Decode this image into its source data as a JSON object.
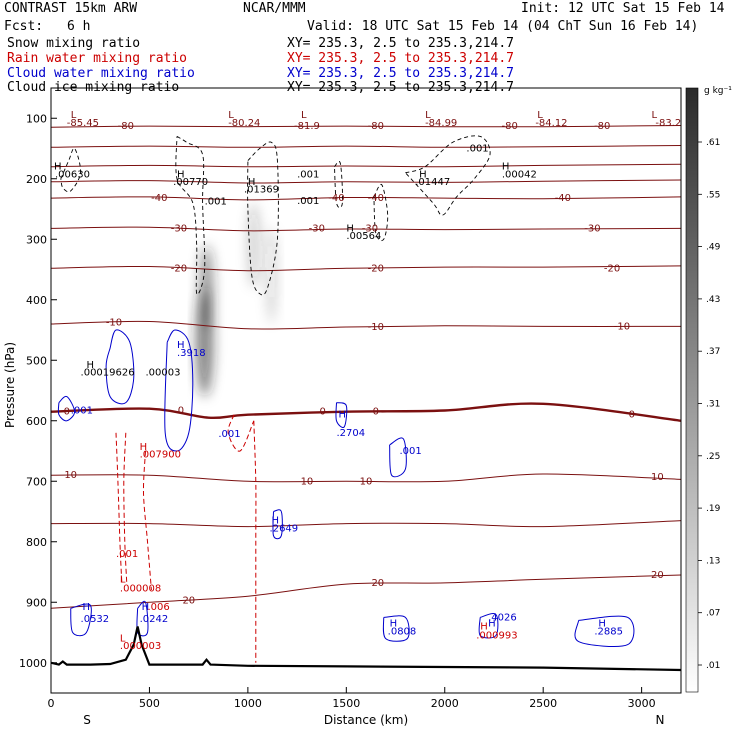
{
  "header": {
    "model": "CONTRAST 15km ARW",
    "org": "NCAR/MMM",
    "init": "Init: 12 UTC Sat 15 Feb 14",
    "fcst_label": "Fcst:",
    "fcst_value": "6 h",
    "valid": "Valid: 18 UTC Sat 15 Feb 14 (04 ChT Sun 16 Feb 14)"
  },
  "legend": [
    {
      "name": "Snow mixing ratio",
      "xy": "XY= 235.3,  2.5 to 235.3,214.7",
      "color": "#000000"
    },
    {
      "name": "Rain water mixing ratio",
      "xy": "XY= 235.3,  2.5 to 235.3,214.7",
      "color": "#cc0000"
    },
    {
      "name": "Cloud water mixing ratio",
      "xy": "XY= 235.3,  2.5 to 235.3,214.7",
      "color": "#0000cc"
    },
    {
      "name": "Cloud ice mixing ratio",
      "xy": "XY= 235.3,  2.5 to 235.3,214.7",
      "color": "#000000"
    }
  ],
  "colors": {
    "temperature": "#7b1010",
    "rain": "#cc0000",
    "cloud_water": "#0000cc",
    "snow": "#000000",
    "terrain": "#000000"
  },
  "chart_data": {
    "type": "line",
    "xlabel": "Distance (km)",
    "ylabel": "Pressure (hPa)",
    "xlim": [
      0,
      3200
    ],
    "ylim": [
      1050,
      50
    ],
    "x_ticks": [
      0,
      500,
      1000,
      1500,
      2000,
      2500,
      3000
    ],
    "y_ticks": [
      100,
      200,
      300,
      400,
      500,
      600,
      700,
      800,
      900,
      1000
    ],
    "x_end_labels": [
      "S",
      "N"
    ],
    "colorbar": {
      "unit": "g kg⁻¹",
      "ticks": [
        ".61",
        ".55",
        ".49",
        ".43",
        ".37",
        ".31",
        ".25",
        ".19",
        ".13",
        ".07",
        ".01"
      ]
    },
    "isotherms": [
      {
        "label": "-80",
        "x": [
          0,
          500,
          1000,
          1500,
          2000,
          2500,
          3200
        ],
        "p": [
          115,
          113,
          114,
          113,
          114,
          114,
          112
        ]
      },
      {
        "label": "-70",
        "x": [
          0,
          500,
          1000,
          1500,
          2000,
          2500,
          3200
        ],
        "p": [
          148,
          146,
          148,
          146,
          148,
          147,
          145
        ]
      },
      {
        "label": "-60",
        "x": [
          0,
          500,
          1000,
          1500,
          2000,
          2500,
          3200
        ],
        "p": [
          180,
          178,
          180,
          179,
          180,
          178,
          176
        ]
      },
      {
        "label": "-50",
        "x": [
          0,
          500,
          1000,
          1500,
          2000,
          2500,
          3200
        ],
        "p": [
          205,
          203,
          207,
          205,
          206,
          204,
          202
        ]
      },
      {
        "label": "-40",
        "x": [
          0,
          500,
          1000,
          1500,
          2000,
          2500,
          3200
        ],
        "p": [
          232,
          230,
          235,
          231,
          232,
          233,
          230
        ]
      },
      {
        "label": "-30",
        "x": [
          0,
          500,
          1000,
          1500,
          2000,
          2500,
          3200
        ],
        "p": [
          282,
          280,
          286,
          283,
          284,
          283,
          282
        ]
      },
      {
        "label": "-20",
        "x": [
          0,
          500,
          1000,
          1500,
          2000,
          2500,
          3200
        ],
        "p": [
          348,
          345,
          352,
          348,
          346,
          346,
          344
        ]
      },
      {
        "label": "-10",
        "x": [
          0,
          500,
          1000,
          1500,
          2000,
          2500,
          3200
        ],
        "p": [
          440,
          436,
          448,
          445,
          443,
          444,
          444
        ]
      },
      {
        "label": "0",
        "x": [
          0,
          500,
          800,
          1000,
          1500,
          2000,
          2500,
          3200
        ],
        "p": [
          585,
          580,
          595,
          590,
          585,
          583,
          572,
          600
        ]
      },
      {
        "label": "10",
        "x": [
          0,
          500,
          1000,
          1500,
          2000,
          2500,
          3200
        ],
        "p": [
          690,
          690,
          700,
          700,
          700,
          688,
          697
        ]
      },
      {
        "label": "10",
        "x": [
          0,
          500,
          1000,
          1500,
          2000,
          2500,
          3200
        ],
        "p": [
          770,
          770,
          775,
          770,
          770,
          775,
          765
        ]
      },
      {
        "label": "20",
        "x": [
          0,
          500,
          1000,
          1500,
          2000,
          2500,
          3200
        ],
        "p": [
          910,
          900,
          890,
          870,
          868,
          862,
          855
        ]
      }
    ],
    "temperature_labels": [
      {
        "text": "-80",
        "x": 380,
        "p": 113
      },
      {
        "text": "-81.9",
        "x": 1300,
        "p": 113
      },
      {
        "text": "-80",
        "x": 1650,
        "p": 113
      },
      {
        "text": "-80",
        "x": 2330,
        "p": 113
      },
      {
        "text": "-80",
        "x": 2800,
        "p": 113
      },
      {
        "text": "-40",
        "x": 550,
        "p": 232
      },
      {
        "text": "-40",
        "x": 1450,
        "p": 232
      },
      {
        "text": "-40",
        "x": 1650,
        "p": 232
      },
      {
        "text": "-40",
        "x": 2600,
        "p": 232
      },
      {
        "text": "-30",
        "x": 650,
        "p": 282
      },
      {
        "text": "-30",
        "x": 1350,
        "p": 282
      },
      {
        "text": "-30",
        "x": 1620,
        "p": 282
      },
      {
        "text": "-30",
        "x": 2750,
        "p": 282
      },
      {
        "text": "-20",
        "x": 650,
        "p": 348
      },
      {
        "text": "-20",
        "x": 1650,
        "p": 348
      },
      {
        "text": "-20",
        "x": 2850,
        "p": 348
      },
      {
        "text": "-10",
        "x": 320,
        "p": 438
      },
      {
        "text": "-10",
        "x": 1650,
        "p": 445
      },
      {
        "text": "-10",
        "x": 2900,
        "p": 444
      },
      {
        "text": "0",
        "x": 80,
        "p": 585
      },
      {
        "text": "0",
        "x": 660,
        "p": 583
      },
      {
        "text": "0",
        "x": 1380,
        "p": 585
      },
      {
        "text": "0",
        "x": 1650,
        "p": 585
      },
      {
        "text": "0",
        "x": 2950,
        "p": 590
      },
      {
        "text": "10",
        "x": 100,
        "p": 690
      },
      {
        "text": "10",
        "x": 1300,
        "p": 700
      },
      {
        "text": "10",
        "x": 1600,
        "p": 700
      },
      {
        "text": "10",
        "x": 3080,
        "p": 693
      },
      {
        "text": "20",
        "x": 700,
        "p": 897
      },
      {
        "text": "20",
        "x": 1660,
        "p": 868
      },
      {
        "text": "20",
        "x": 3080,
        "p": 855
      }
    ],
    "extrema_labels": [
      {
        "text": "L",
        "x": 100,
        "p": 95,
        "color": "#7b1010"
      },
      {
        "text": "-85.45",
        "x": 80,
        "p": 108,
        "color": "#7b1010"
      },
      {
        "text": "L",
        "x": 900,
        "p": 95,
        "color": "#7b1010"
      },
      {
        "text": "-80.24",
        "x": 900,
        "p": 108,
        "color": "#7b1010"
      },
      {
        "text": "L",
        "x": 1270,
        "p": 95,
        "color": "#7b1010"
      },
      {
        "text": "L",
        "x": 1900,
        "p": 95,
        "color": "#7b1010"
      },
      {
        "text": "-84.99",
        "x": 1900,
        "p": 108,
        "color": "#7b1010"
      },
      {
        "text": "L",
        "x": 2470,
        "p": 95,
        "color": "#7b1010"
      },
      {
        "text": "-84.12",
        "x": 2460,
        "p": 108,
        "color": "#7b1010"
      },
      {
        "text": "L",
        "x": 3050,
        "p": 95,
        "color": "#7b1010"
      },
      {
        "text": "-83.2",
        "x": 3070,
        "p": 108,
        "color": "#7b1010"
      },
      {
        "text": "H",
        "x": 15,
        "p": 180,
        "color": "#000"
      },
      {
        "text": ".00630",
        "x": 20,
        "p": 193,
        "color": "#000"
      },
      {
        "text": "H",
        "x": 640,
        "p": 193,
        "color": "#000"
      },
      {
        "text": ".00770",
        "x": 620,
        "p": 205,
        "color": "#000"
      },
      {
        "text": ".001",
        "x": 780,
        "p": 238,
        "color": "#000"
      },
      {
        "text": "H",
        "x": 1000,
        "p": 205,
        "color": "#000"
      },
      {
        "text": ".01369",
        "x": 980,
        "p": 218,
        "color": "#000"
      },
      {
        "text": ".001",
        "x": 1250,
        "p": 193,
        "color": "#000"
      },
      {
        "text": ".001",
        "x": 1250,
        "p": 237,
        "color": "#000"
      },
      {
        "text": "H",
        "x": 1500,
        "p": 282,
        "color": "#000"
      },
      {
        "text": ".00564",
        "x": 1500,
        "p": 295,
        "color": "#000"
      },
      {
        "text": "H",
        "x": 1870,
        "p": 193,
        "color": "#000"
      },
      {
        "text": ".01447",
        "x": 1850,
        "p": 205,
        "color": "#000"
      },
      {
        "text": ".001",
        "x": 2110,
        "p": 150,
        "color": "#000"
      },
      {
        "text": "H",
        "x": 2290,
        "p": 180,
        "color": "#000"
      },
      {
        "text": ".00042",
        "x": 2290,
        "p": 193,
        "color": "#000"
      },
      {
        "text": "H",
        "x": 180,
        "p": 508,
        "color": "#000"
      },
      {
        "text": ".00019626",
        "x": 150,
        "p": 520,
        "color": "#000"
      },
      {
        "text": ".00003",
        "x": 480,
        "p": 520,
        "color": "#000"
      },
      {
        "text": ".3918",
        "x": 640,
        "p": 488,
        "color": "#0000cc"
      },
      {
        "text": "H",
        "x": 640,
        "p": 475,
        "color": "#0000cc"
      },
      {
        "text": ".001",
        "x": 100,
        "p": 583,
        "color": "#0000cc"
      },
      {
        "text": ".001",
        "x": 850,
        "p": 622,
        "color": "#0000cc"
      },
      {
        "text": "H",
        "x": 1460,
        "p": 590,
        "color": "#0000cc"
      },
      {
        "text": ".2704",
        "x": 1450,
        "p": 620,
        "color": "#0000cc"
      },
      {
        "text": ".001",
        "x": 1770,
        "p": 650,
        "color": "#0000cc"
      },
      {
        "text": "H",
        "x": 1120,
        "p": 765,
        "color": "#0000cc"
      },
      {
        "text": ".2649",
        "x": 1110,
        "p": 778,
        "color": "#0000cc"
      },
      {
        "text": "H",
        "x": 160,
        "p": 908,
        "color": "#0000cc"
      },
      {
        "text": ".0532",
        "x": 150,
        "p": 928,
        "color": "#0000cc"
      },
      {
        "text": "H",
        "x": 460,
        "p": 908,
        "color": "#0000cc"
      },
      {
        "text": ".0242",
        "x": 450,
        "p": 928,
        "color": "#0000cc"
      },
      {
        "text": "H",
        "x": 1720,
        "p": 935,
        "color": "#0000cc"
      },
      {
        "text": ".0808",
        "x": 1710,
        "p": 948,
        "color": "#0000cc"
      },
      {
        "text": "H",
        "x": 2220,
        "p": 935,
        "color": "#0000cc"
      },
      {
        "text": ".4026",
        "x": 2220,
        "p": 925,
        "color": "#0000cc"
      },
      {
        "text": "H",
        "x": 2780,
        "p": 935,
        "color": "#0000cc"
      },
      {
        "text": ".2885",
        "x": 2760,
        "p": 948,
        "color": "#0000cc"
      },
      {
        "text": "H",
        "x": 450,
        "p": 643,
        "color": "#cc0000"
      },
      {
        "text": ".007900",
        "x": 450,
        "p": 656,
        "color": "#cc0000"
      },
      {
        "text": ".001",
        "x": 330,
        "p": 820,
        "color": "#cc0000"
      },
      {
        "text": "L",
        "x": 350,
        "p": 862,
        "color": "#cc0000"
      },
      {
        "text": ".000008",
        "x": 350,
        "p": 877,
        "color": "#cc0000"
      },
      {
        "text": ".006",
        "x": 490,
        "p": 908,
        "color": "#cc0000"
      },
      {
        "text": "L",
        "x": 350,
        "p": 960,
        "color": "#cc0000"
      },
      {
        "text": ".000003",
        "x": 350,
        "p": 972,
        "color": "#cc0000"
      },
      {
        "text": "H",
        "x": 2180,
        "p": 940,
        "color": "#cc0000"
      },
      {
        "text": ".000993",
        "x": 2160,
        "p": 955,
        "color": "#cc0000"
      }
    ],
    "terrain": {
      "x": [
        0,
        40,
        60,
        80,
        200,
        300,
        380,
        420,
        440,
        460,
        500,
        600,
        770,
        790,
        810,
        1000,
        1500,
        2000,
        2500,
        3200
      ],
      "p": [
        1000,
        1003,
        998,
        1003,
        1003,
        1002,
        995,
        970,
        940,
        970,
        1003,
        1003,
        1003,
        995,
        1003,
        1005,
        1006,
        1007,
        1008,
        1012
      ]
    },
    "snow_field": [
      {
        "x": 780,
        "p": 470,
        "sx": 45,
        "sp": 90,
        "amp": 0.55
      },
      {
        "x": 790,
        "p": 380,
        "sx": 35,
        "sp": 70,
        "amp": 0.45
      },
      {
        "x": 1030,
        "p": 310,
        "sx": 30,
        "sp": 70,
        "amp": 0.22
      },
      {
        "x": 1120,
        "p": 360,
        "sx": 25,
        "sp": 80,
        "amp": 0.18
      }
    ]
  }
}
